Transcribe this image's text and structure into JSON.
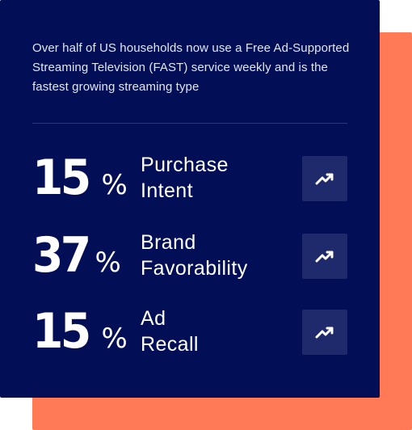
{
  "colors": {
    "card_background": "#020e56",
    "accent_background": "#ff7a55",
    "text": "#ffffff",
    "button_background": "#1f2a6c"
  },
  "intro_text": "Over half of US households now use a Free Ad-Supported Streaming Television (FAST) service weekly and is the fastest growing streaming type",
  "stats": [
    {
      "number": "15",
      "percent": "%",
      "label_line1": "Purchase",
      "label_line2": "Intent",
      "icon": "trending-up-icon"
    },
    {
      "number": "37",
      "percent": "%",
      "label_line1": "Brand",
      "label_line2": "Favorability",
      "icon": "trending-up-icon"
    },
    {
      "number": "15",
      "percent": "%",
      "label_line1": "Ad",
      "label_line2": "Recall",
      "icon": "trending-up-icon"
    }
  ]
}
